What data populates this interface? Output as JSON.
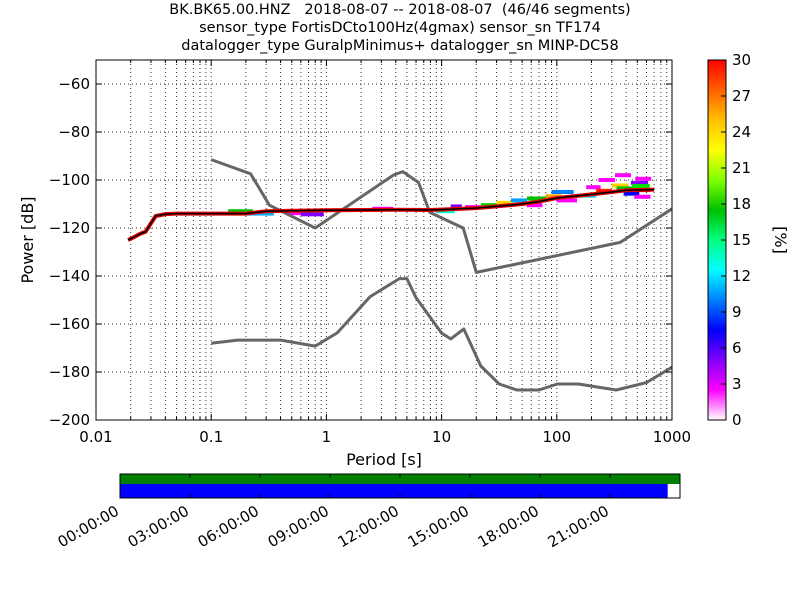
{
  "chart_data": {
    "type": "ppsd",
    "title_lines": [
      "BK.BK65.00.HNZ   2018-08-07 -- 2018-08-07  (46/46 segments)",
      "sensor_type FortisDCto100Hz(4gmax) sensor_sn TF174",
      "datalogger_type GuralpMinimus+ datalogger_sn MINP-DC58"
    ],
    "xlabel": "Period [s]",
    "ylabel": "Power [dB]",
    "x_scale": "log",
    "xlim": [
      0.01,
      1000
    ],
    "ylim": [
      -200,
      -50
    ],
    "xticks": [
      {
        "value": 0.01,
        "label": "0.01"
      },
      {
        "value": 0.1,
        "label": "0.1"
      },
      {
        "value": 1,
        "label": "1"
      },
      {
        "value": 10,
        "label": "10"
      },
      {
        "value": 100,
        "label": "100"
      },
      {
        "value": 1000,
        "label": "1000"
      }
    ],
    "yticks": [
      {
        "value": -60,
        "label": "−60"
      },
      {
        "value": -80,
        "label": "−80"
      },
      {
        "value": -100,
        "label": "−100"
      },
      {
        "value": -120,
        "label": "−120"
      },
      {
        "value": -140,
        "label": "−140"
      },
      {
        "value": -160,
        "label": "−160"
      },
      {
        "value": -180,
        "label": "−180"
      },
      {
        "value": -200,
        "label": "−200"
      }
    ],
    "grid": true,
    "nhnm": {
      "color": "#666666",
      "points": [
        [
          0.1,
          -91.5
        ],
        [
          0.22,
          -97.4
        ],
        [
          0.32,
          -110.5
        ],
        [
          0.8,
          -120
        ],
        [
          3.8,
          -98
        ],
        [
          4.6,
          -96.5
        ],
        [
          6.3,
          -101
        ],
        [
          7.9,
          -113.5
        ],
        [
          15.4,
          -120
        ],
        [
          20,
          -138.5
        ],
        [
          354.8,
          -126
        ],
        [
          1000,
          -112
        ]
      ]
    },
    "nlnm": {
      "color": "#666666",
      "points": [
        [
          0.1,
          -168
        ],
        [
          0.17,
          -166.7
        ],
        [
          0.4,
          -166.7
        ],
        [
          0.8,
          -169.2
        ],
        [
          1.24,
          -163.7
        ],
        [
          2.4,
          -148.6
        ],
        [
          4.3,
          -141.1
        ],
        [
          5,
          -141.1
        ],
        [
          6,
          -149
        ],
        [
          10,
          -163.8
        ],
        [
          12,
          -166.2
        ],
        [
          15.6,
          -162.1
        ],
        [
          21.9,
          -177.5
        ],
        [
          31.6,
          -185
        ],
        [
          45,
          -187.5
        ],
        [
          70,
          -187.5
        ],
        [
          101,
          -185
        ],
        [
          154,
          -185
        ],
        [
          328,
          -187.5
        ],
        [
          600,
          -184.4
        ],
        [
          1000,
          -178
        ]
      ]
    },
    "psd_mode": {
      "color": "#000000",
      "points": [
        [
          0.019,
          -125
        ],
        [
          0.021,
          -124
        ],
        [
          0.024,
          -122.5
        ],
        [
          0.027,
          -121.5
        ],
        [
          0.03,
          -118
        ],
        [
          0.033,
          -115
        ],
        [
          0.04,
          -114.2
        ],
        [
          0.05,
          -114
        ],
        [
          0.1,
          -114
        ],
        [
          0.2,
          -114
        ],
        [
          0.3,
          -113
        ],
        [
          0.5,
          -112.8
        ],
        [
          1,
          -112.6
        ],
        [
          2,
          -112.5
        ],
        [
          4,
          -112.4
        ],
        [
          8,
          -112.5
        ],
        [
          15,
          -112
        ],
        [
          20,
          -111.7
        ],
        [
          30,
          -111
        ],
        [
          50,
          -110
        ],
        [
          70,
          -109
        ],
        [
          100,
          -107.5
        ],
        [
          200,
          -106
        ],
        [
          300,
          -105
        ],
        [
          400,
          -104.3
        ],
        [
          700,
          -104
        ]
      ]
    },
    "psd_spread": [
      {
        "x": [
          0.14,
          0.23
        ],
        "y": -113,
        "color": "#00c000"
      },
      {
        "x": [
          0.2,
          0.35
        ],
        "y": -114,
        "color": "#00b0ff"
      },
      {
        "x": [
          0.45,
          0.7
        ],
        "y": -113.8,
        "color": "#ff00ff"
      },
      {
        "x": [
          0.6,
          0.95
        ],
        "y": -114.3,
        "color": "#8000ff"
      },
      {
        "x": [
          2.5,
          3.8
        ],
        "y": -112,
        "color": "#ff00ff"
      },
      {
        "x": [
          9,
          13
        ],
        "y": -113,
        "color": "#00ffd0"
      },
      {
        "x": [
          12,
          15
        ],
        "y": -111,
        "color": "#8000ff"
      },
      {
        "x": [
          16,
          22
        ],
        "y": -111.3,
        "color": "#ff00ff"
      },
      {
        "x": [
          22,
          30
        ],
        "y": -110.5,
        "color": "#00d000"
      },
      {
        "x": [
          30,
          40
        ],
        "y": -109.5,
        "color": "#ffd000"
      },
      {
        "x": [
          40,
          55
        ],
        "y": -108.5,
        "color": "#00a0ff"
      },
      {
        "x": [
          55,
          75
        ],
        "y": -110.5,
        "color": "#ff00ff"
      },
      {
        "x": [
          55,
          80
        ],
        "y": -107.7,
        "color": "#00c000"
      },
      {
        "x": [
          80,
          110
        ],
        "y": -106.8,
        "color": "#ffa000"
      },
      {
        "x": [
          90,
          140
        ],
        "y": -105,
        "color": "#0080ff"
      },
      {
        "x": [
          100,
          150
        ],
        "y": -108.5,
        "color": "#ff00ff"
      },
      {
        "x": [
          150,
          220
        ],
        "y": -106.5,
        "color": "#00d0ff"
      },
      {
        "x": [
          180,
          240
        ],
        "y": -103,
        "color": "#ff00ff"
      },
      {
        "x": [
          220,
          300
        ],
        "y": -104.5,
        "color": "#ff2000"
      },
      {
        "x": [
          230,
          320
        ],
        "y": -100,
        "color": "#ff00ff"
      },
      {
        "x": [
          300,
          420
        ],
        "y": -102.3,
        "color": "#ffd000"
      },
      {
        "x": [
          320,
          440
        ],
        "y": -98,
        "color": "#ff00ff"
      },
      {
        "x": [
          330,
          480
        ],
        "y": -103.5,
        "color": "#00c000"
      },
      {
        "x": [
          380,
          520
        ],
        "y": -105.7,
        "color": "#0000ff"
      },
      {
        "x": [
          440,
          620
        ],
        "y": -101.2,
        "color": "#8000ff"
      },
      {
        "x": [
          450,
          640
        ],
        "y": -102.5,
        "color": "#00e000"
      },
      {
        "x": [
          470,
          650
        ],
        "y": -104.2,
        "color": "#ff0000"
      },
      {
        "x": [
          470,
          650
        ],
        "y": -107,
        "color": "#ff00ff"
      },
      {
        "x": [
          480,
          660
        ],
        "y": -99.5,
        "color": "#ff00ff"
      }
    ],
    "colorbar": {
      "label": "[%]",
      "range": [
        0,
        30
      ],
      "ticks": [
        "0",
        "3",
        "6",
        "9",
        "12",
        "15",
        "18",
        "21",
        "24",
        "27",
        "30"
      ],
      "colormap": [
        "#ffffff",
        "#ff00ff",
        "#8000ff",
        "#0000ff",
        "#0080ff",
        "#00ffff",
        "#00ff80",
        "#00c000",
        "#80ff00",
        "#ffff00",
        "#ffc000",
        "#ff6000",
        "#ff0000"
      ]
    },
    "coverage": {
      "top_color": "#007f00",
      "bottom_color": "#0000ff",
      "data_fraction": 0.978,
      "time_ticks": [
        "00:00:00",
        "03:00:00",
        "06:00:00",
        "09:00:00",
        "12:00:00",
        "15:00:00",
        "18:00:00",
        "21:00:00"
      ]
    }
  }
}
